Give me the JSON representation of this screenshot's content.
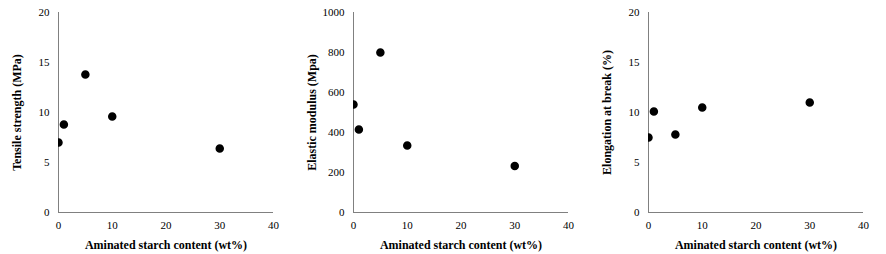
{
  "chart_data": [
    {
      "type": "scatter",
      "x_label": "Aminated starch content (wt%)",
      "y_label": "Tensile strength (MPa)",
      "x": [
        0,
        1,
        5,
        10,
        30
      ],
      "values": [
        7.0,
        8.8,
        13.8,
        9.6,
        6.4
      ],
      "xlim": [
        0,
        40
      ],
      "xticks": [
        0,
        10,
        20,
        30,
        40
      ],
      "ylim": [
        0,
        20
      ],
      "yticks": [
        0,
        5,
        10,
        15,
        20
      ],
      "color": "#000000",
      "marker": "circle",
      "grid": false
    },
    {
      "type": "scatter",
      "x_label": "Aminated starch content (wt%)",
      "y_label": "Elastic modulus (Mpa)",
      "x": [
        0,
        1,
        5,
        10,
        30
      ],
      "values": [
        540,
        415,
        800,
        335,
        232
      ],
      "xlim": [
        0,
        40
      ],
      "xticks": [
        0,
        10,
        20,
        30,
        40
      ],
      "ylim": [
        0,
        1000
      ],
      "yticks": [
        0,
        200,
        400,
        600,
        800,
        1000
      ],
      "color": "#000000",
      "marker": "circle",
      "grid": false
    },
    {
      "type": "scatter",
      "x_label": "Aminated starch content (wt%)",
      "y_label": "Elongation at break (%)",
      "x": [
        0,
        1,
        5,
        10,
        30
      ],
      "values": [
        7.5,
        10.1,
        7.8,
        10.5,
        11.0
      ],
      "xlim": [
        0,
        40
      ],
      "xticks": [
        0,
        10,
        20,
        30,
        40
      ],
      "ylim": [
        0,
        20
      ],
      "yticks": [
        0,
        5,
        10,
        15,
        20
      ],
      "color": "#000000",
      "marker": "circle",
      "grid": false
    }
  ]
}
